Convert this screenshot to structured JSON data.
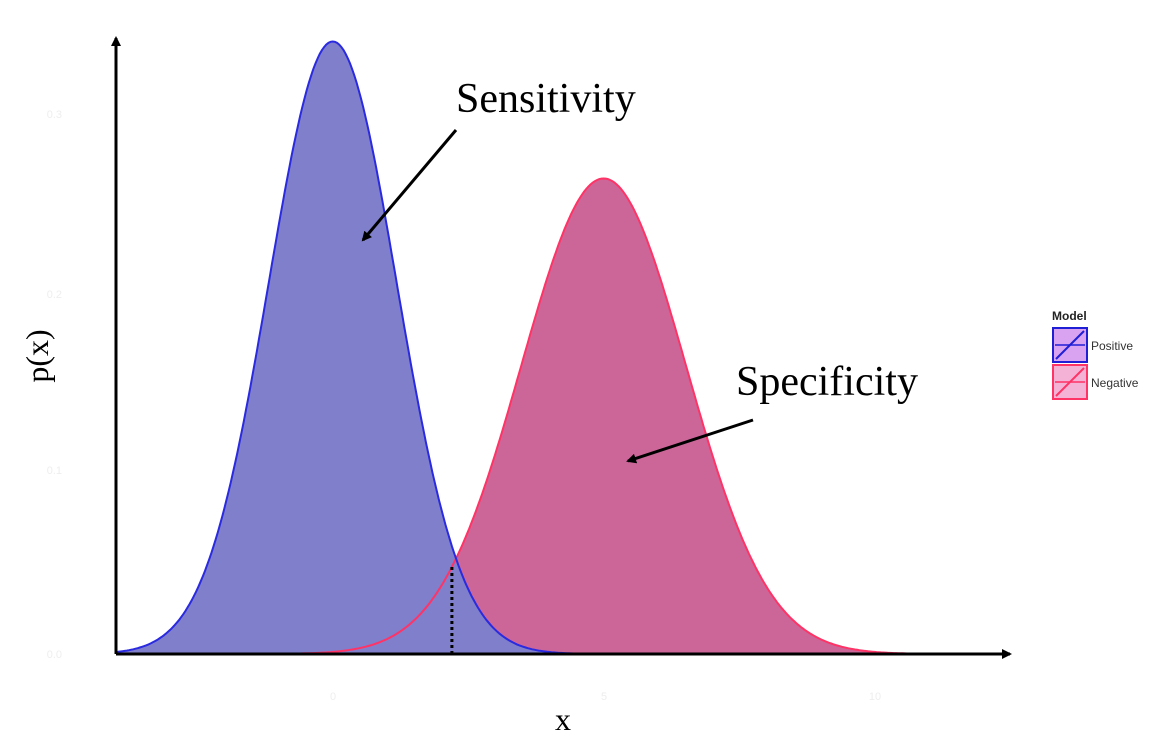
{
  "chart_data": {
    "type": "area",
    "xlabel": "x",
    "ylabel": "p(x)",
    "x_tick_labels": [
      "0",
      "5",
      "10"
    ],
    "y_tick_labels": [
      "0.0",
      "0.1",
      "0.2",
      "0.3"
    ],
    "xlim": [
      -4,
      12.5
    ],
    "ylim": [
      0,
      0.34
    ],
    "threshold_x": 2.2,
    "grid": false,
    "legend_position": "right",
    "legend": {
      "title": "Model",
      "items": [
        {
          "label": "Positive",
          "fill": "#d9a3f2",
          "stroke": "#1f1fd6"
        },
        {
          "label": "Negative",
          "fill": "#f4b3d6",
          "stroke": "#ff3366"
        }
      ]
    },
    "series": [
      {
        "name": "Positive",
        "distribution": "normal",
        "mean": 0,
        "sd": 1.18,
        "fill": "#7f7fcc",
        "stroke": "#2a2ae0"
      },
      {
        "name": "Negative",
        "distribution": "normal",
        "mean": 5,
        "sd": 1.52,
        "fill": "#cc6699",
        "stroke": "#ff3366"
      }
    ],
    "annotations": [
      {
        "text": "Sensitivity",
        "points_to": "Positive"
      },
      {
        "text": "Specificity",
        "points_to": "Negative"
      }
    ]
  }
}
